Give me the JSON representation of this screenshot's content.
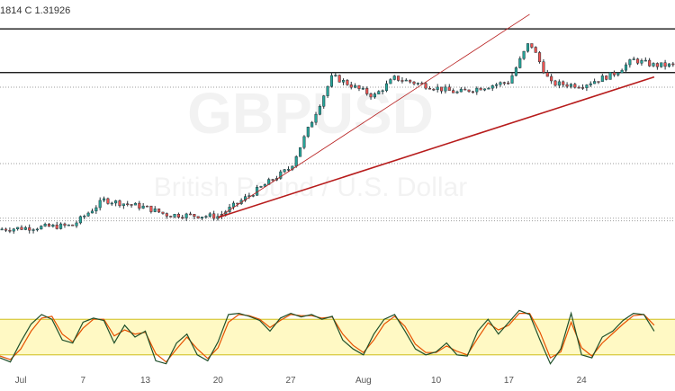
{
  "header": {
    "ohlc_text": "1814  C 1.31926"
  },
  "watermark": {
    "symbol": "GBPUSD",
    "description": "British Pound / U.S. Dollar"
  },
  "colors": {
    "up": "#26a69a",
    "down": "#ef5350",
    "candle_outline": "#263238",
    "horizontal_line": "#000000",
    "trendline": "#b71c1c",
    "dotted_level": "#9e9e9e",
    "stoch_k": "#1f4f2a",
    "stoch_d": "#e65100",
    "stoch_band": "#fff9c4",
    "stoch_band_border": "#c8b400"
  },
  "chart_data": {
    "type": "candlestick",
    "symbol": "GBPUSD",
    "x_labels": [
      "Jul",
      "7",
      "13",
      "20",
      "27",
      "Aug",
      "10",
      "17",
      "24"
    ],
    "ylim": [
      1.25,
      1.329
    ],
    "horizontal_lines": [
      1.326,
      1.314
    ],
    "dotted_levels": [
      1.31,
      1.289,
      1.274,
      1.2733
    ],
    "trendlines": [
      {
        "from": {
          "date": "Jul 20",
          "price": 1.2742
        },
        "to": {
          "date": "Aug 31",
          "price": 1.3128
        },
        "weight": "thick"
      },
      {
        "from": {
          "date": "Jul 20",
          "price": 1.2742
        },
        "to": {
          "date": "Aug 19",
          "price": 1.33
        },
        "weight": "thin"
      }
    ],
    "price_segments": [
      {
        "from": "Jun 29",
        "to": "Jul 6",
        "start": 1.271,
        "end": 1.272
      },
      {
        "from": "Jul 6",
        "to": "Jul 9",
        "start": 1.272,
        "end": 1.279
      },
      {
        "from": "Jul 9",
        "to": "Jul 13",
        "start": 1.279,
        "end": 1.277
      },
      {
        "from": "Jul 13",
        "to": "Jul 15",
        "start": 1.277,
        "end": 1.275
      },
      {
        "from": "Jul 15",
        "to": "Jul 20",
        "start": 1.275,
        "end": 1.2745
      },
      {
        "from": "Jul 20",
        "to": "Jul 27",
        "start": 1.2745,
        "end": 1.288
      },
      {
        "from": "Jul 27",
        "to": "Jul 31",
        "start": 1.288,
        "end": 1.313
      },
      {
        "from": "Jul 31",
        "to": "Aug 4",
        "start": 1.313,
        "end": 1.3075
      },
      {
        "from": "Aug 4",
        "to": "Aug 6",
        "start": 1.3075,
        "end": 1.3125
      },
      {
        "from": "Aug 6",
        "to": "Aug 12",
        "start": 1.3125,
        "end": 1.3085
      },
      {
        "from": "Aug 12",
        "to": "Aug 17",
        "start": 1.3085,
        "end": 1.3115
      },
      {
        "from": "Aug 17",
        "to": "Aug 19",
        "start": 1.3115,
        "end": 1.3225
      },
      {
        "from": "Aug 19",
        "to": "Aug 21",
        "start": 1.3225,
        "end": 1.311
      },
      {
        "from": "Aug 21",
        "to": "Aug 24",
        "start": 1.311,
        "end": 1.3105
      },
      {
        "from": "Aug 24",
        "to": "Aug 27",
        "start": 1.3105,
        "end": 1.3135
      },
      {
        "from": "Aug 27",
        "to": "Aug 29",
        "start": 1.3135,
        "end": 1.3175
      },
      {
        "from": "Aug 29",
        "to": "Aug 31",
        "start": 1.3175,
        "end": 1.316
      }
    ],
    "stochastic": {
      "band": [
        20,
        80
      ],
      "ylim": [
        0,
        100
      ],
      "k_line": [
        [
          "Jun 29",
          15
        ],
        [
          "Jun 30",
          8
        ],
        [
          "Jul 1",
          42
        ],
        [
          "Jul 2",
          72
        ],
        [
          "Jul 3",
          88
        ],
        [
          "Jul 4",
          80
        ],
        [
          "Jul 5",
          45
        ],
        [
          "Jul 6",
          40
        ],
        [
          "Jul 7",
          75
        ],
        [
          "Jul 8",
          82
        ],
        [
          "Jul 9",
          78
        ],
        [
          "Jul 10",
          40
        ],
        [
          "Jul 11",
          70
        ],
        [
          "Jul 12",
          50
        ],
        [
          "Jul 13",
          60
        ],
        [
          "Jul 14",
          10
        ],
        [
          "Jul 15",
          5
        ],
        [
          "Jul 16",
          40
        ],
        [
          "Jul 17",
          55
        ],
        [
          "Jul 18",
          20
        ],
        [
          "Jul 19",
          10
        ],
        [
          "Jul 20",
          42
        ],
        [
          "Jul 21",
          88
        ],
        [
          "Jul 22",
          90
        ],
        [
          "Jul 23",
          85
        ],
        [
          "Jul 24",
          78
        ],
        [
          "Jul 25",
          60
        ],
        [
          "Jul 26",
          82
        ],
        [
          "Jul 27",
          90
        ],
        [
          "Jul 28",
          84
        ],
        [
          "Jul 29",
          88
        ],
        [
          "Jul 30",
          80
        ],
        [
          "Jul 31",
          85
        ],
        [
          "Aug 1",
          45
        ],
        [
          "Aug 2",
          30
        ],
        [
          "Aug 3",
          20
        ],
        [
          "Aug 4",
          55
        ],
        [
          "Aug 5",
          80
        ],
        [
          "Aug 6",
          88
        ],
        [
          "Aug 7",
          60
        ],
        [
          "Aug 8",
          30
        ],
        [
          "Aug 9",
          20
        ],
        [
          "Aug 10",
          25
        ],
        [
          "Aug 11",
          40
        ],
        [
          "Aug 12",
          20
        ],
        [
          "Aug 13",
          18
        ],
        [
          "Aug 14",
          60
        ],
        [
          "Aug 15",
          80
        ],
        [
          "Aug 16",
          55
        ],
        [
          "Aug 17",
          75
        ],
        [
          "Aug 18",
          95
        ],
        [
          "Aug 19",
          88
        ],
        [
          "Aug 20",
          45
        ],
        [
          "Aug 21",
          5
        ],
        [
          "Aug 22",
          30
        ],
        [
          "Aug 23",
          90
        ],
        [
          "Aug 24",
          20
        ],
        [
          "Aug 25",
          15
        ],
        [
          "Aug 26",
          50
        ],
        [
          "Aug 27",
          60
        ],
        [
          "Aug 28",
          78
        ],
        [
          "Aug 29",
          90
        ],
        [
          "Aug 30",
          88
        ],
        [
          "Aug 31",
          60
        ]
      ],
      "d_line": [
        [
          "Jun 29",
          18
        ],
        [
          "Jun 30",
          12
        ],
        [
          "Jul 1",
          30
        ],
        [
          "Jul 2",
          60
        ],
        [
          "Jul 3",
          82
        ],
        [
          "Jul 4",
          85
        ],
        [
          "Jul 5",
          55
        ],
        [
          "Jul 6",
          42
        ],
        [
          "Jul 7",
          65
        ],
        [
          "Jul 8",
          80
        ],
        [
          "Jul 9",
          80
        ],
        [
          "Jul 10",
          52
        ],
        [
          "Jul 11",
          62
        ],
        [
          "Jul 12",
          55
        ],
        [
          "Jul 13",
          58
        ],
        [
          "Jul 14",
          22
        ],
        [
          "Jul 15",
          8
        ],
        [
          "Jul 16",
          30
        ],
        [
          "Jul 17",
          50
        ],
        [
          "Jul 18",
          30
        ],
        [
          "Jul 19",
          14
        ],
        [
          "Jul 20",
          32
        ],
        [
          "Jul 21",
          75
        ],
        [
          "Jul 22",
          88
        ],
        [
          "Jul 23",
          86
        ],
        [
          "Jul 24",
          80
        ],
        [
          "Jul 25",
          66
        ],
        [
          "Jul 26",
          78
        ],
        [
          "Jul 27",
          88
        ],
        [
          "Jul 28",
          86
        ],
        [
          "Jul 29",
          86
        ],
        [
          "Jul 30",
          82
        ],
        [
          "Jul 31",
          84
        ],
        [
          "Aug 1",
          55
        ],
        [
          "Aug 2",
          36
        ],
        [
          "Aug 3",
          24
        ],
        [
          "Aug 4",
          45
        ],
        [
          "Aug 5",
          72
        ],
        [
          "Aug 6",
          85
        ],
        [
          "Aug 7",
          68
        ],
        [
          "Aug 8",
          38
        ],
        [
          "Aug 9",
          24
        ],
        [
          "Aug 10",
          24
        ],
        [
          "Aug 11",
          35
        ],
        [
          "Aug 12",
          26
        ],
        [
          "Aug 13",
          20
        ],
        [
          "Aug 14",
          48
        ],
        [
          "Aug 15",
          74
        ],
        [
          "Aug 16",
          62
        ],
        [
          "Aug 17",
          70
        ],
        [
          "Aug 18",
          90
        ],
        [
          "Aug 19",
          90
        ],
        [
          "Aug 20",
          58
        ],
        [
          "Aug 21",
          15
        ],
        [
          "Aug 22",
          25
        ],
        [
          "Aug 23",
          75
        ],
        [
          "Aug 24",
          32
        ],
        [
          "Aug 25",
          18
        ],
        [
          "Aug 26",
          40
        ],
        [
          "Aug 27",
          56
        ],
        [
          "Aug 28",
          72
        ],
        [
          "Aug 29",
          86
        ],
        [
          "Aug 30",
          88
        ],
        [
          "Aug 31",
          70
        ]
      ]
    }
  }
}
